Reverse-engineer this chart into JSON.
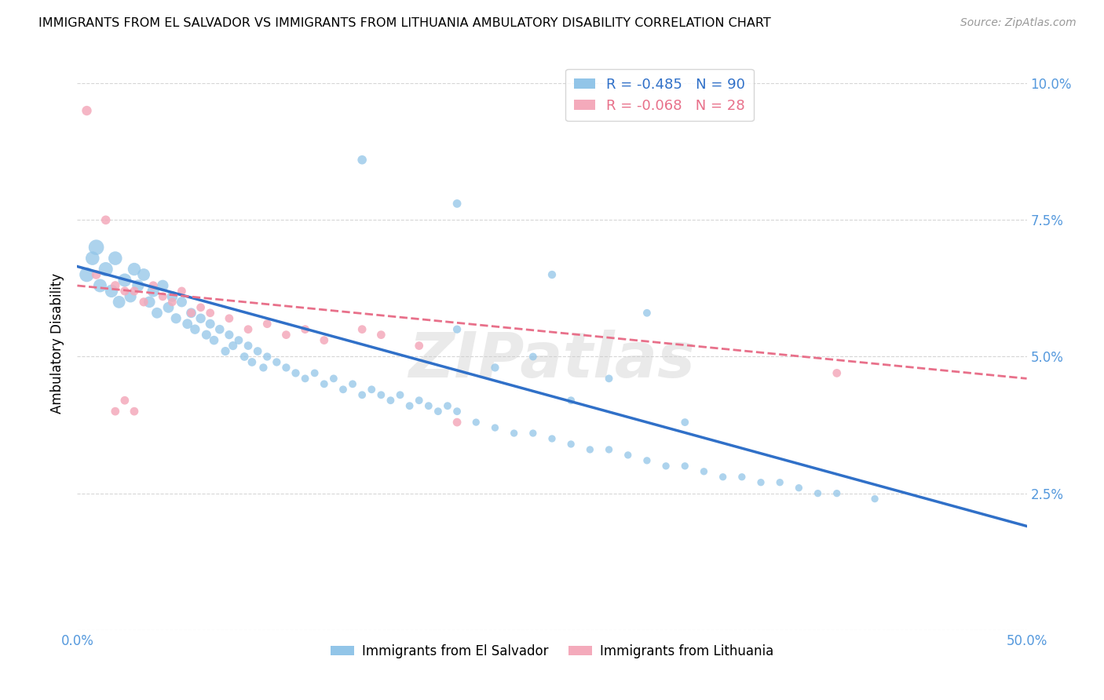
{
  "title": "IMMIGRANTS FROM EL SALVADOR VS IMMIGRANTS FROM LITHUANIA AMBULATORY DISABILITY CORRELATION CHART",
  "source": "Source: ZipAtlas.com",
  "ylabel": "Ambulatory Disability",
  "xlim": [
    0.0,
    0.5
  ],
  "ylim": [
    0.0,
    0.105
  ],
  "el_salvador_R": -0.485,
  "el_salvador_N": 90,
  "lithuania_R": -0.068,
  "lithuania_N": 28,
  "legend_labels": [
    "Immigrants from El Salvador",
    "Immigrants from Lithuania"
  ],
  "blue_color": "#92C5E8",
  "pink_color": "#F4AABB",
  "blue_line_color": "#3070C8",
  "pink_line_color": "#E8708A",
  "watermark": "ZIPatlas",
  "el_salvador_x": [
    0.005,
    0.008,
    0.01,
    0.012,
    0.015,
    0.018,
    0.02,
    0.022,
    0.025,
    0.028,
    0.03,
    0.032,
    0.035,
    0.038,
    0.04,
    0.042,
    0.045,
    0.048,
    0.05,
    0.052,
    0.055,
    0.058,
    0.06,
    0.062,
    0.065,
    0.068,
    0.07,
    0.072,
    0.075,
    0.078,
    0.08,
    0.082,
    0.085,
    0.088,
    0.09,
    0.092,
    0.095,
    0.098,
    0.1,
    0.105,
    0.11,
    0.115,
    0.12,
    0.125,
    0.13,
    0.135,
    0.14,
    0.145,
    0.15,
    0.155,
    0.16,
    0.165,
    0.17,
    0.175,
    0.18,
    0.185,
    0.19,
    0.195,
    0.2,
    0.21,
    0.22,
    0.23,
    0.24,
    0.25,
    0.26,
    0.27,
    0.28,
    0.29,
    0.3,
    0.31,
    0.32,
    0.33,
    0.34,
    0.35,
    0.36,
    0.37,
    0.38,
    0.39,
    0.4,
    0.42,
    0.15,
    0.2,
    0.25,
    0.3,
    0.2,
    0.24,
    0.28,
    0.22,
    0.26,
    0.32
  ],
  "el_salvador_y": [
    0.065,
    0.068,
    0.07,
    0.063,
    0.066,
    0.062,
    0.068,
    0.06,
    0.064,
    0.061,
    0.066,
    0.063,
    0.065,
    0.06,
    0.062,
    0.058,
    0.063,
    0.059,
    0.061,
    0.057,
    0.06,
    0.056,
    0.058,
    0.055,
    0.057,
    0.054,
    0.056,
    0.053,
    0.055,
    0.051,
    0.054,
    0.052,
    0.053,
    0.05,
    0.052,
    0.049,
    0.051,
    0.048,
    0.05,
    0.049,
    0.048,
    0.047,
    0.046,
    0.047,
    0.045,
    0.046,
    0.044,
    0.045,
    0.043,
    0.044,
    0.043,
    0.042,
    0.043,
    0.041,
    0.042,
    0.041,
    0.04,
    0.041,
    0.04,
    0.038,
    0.037,
    0.036,
    0.036,
    0.035,
    0.034,
    0.033,
    0.033,
    0.032,
    0.031,
    0.03,
    0.03,
    0.029,
    0.028,
    0.028,
    0.027,
    0.027,
    0.026,
    0.025,
    0.025,
    0.024,
    0.086,
    0.078,
    0.065,
    0.058,
    0.055,
    0.05,
    0.046,
    0.048,
    0.042,
    0.038
  ],
  "el_salvador_sizes": [
    180,
    160,
    200,
    150,
    170,
    140,
    160,
    130,
    150,
    120,
    140,
    120,
    130,
    110,
    120,
    100,
    110,
    100,
    100,
    90,
    90,
    85,
    85,
    80,
    80,
    75,
    75,
    70,
    70,
    65,
    65,
    65,
    60,
    60,
    60,
    60,
    60,
    55,
    55,
    55,
    55,
    55,
    50,
    50,
    50,
    50,
    50,
    50,
    50,
    50,
    50,
    50,
    50,
    50,
    50,
    50,
    50,
    50,
    50,
    45,
    45,
    45,
    45,
    45,
    45,
    45,
    45,
    45,
    45,
    45,
    45,
    45,
    45,
    45,
    45,
    45,
    45,
    45,
    45,
    45,
    70,
    60,
    55,
    50,
    55,
    50,
    50,
    55,
    50,
    50
  ],
  "lithuania_x": [
    0.005,
    0.01,
    0.015,
    0.02,
    0.025,
    0.03,
    0.035,
    0.04,
    0.045,
    0.05,
    0.055,
    0.06,
    0.065,
    0.07,
    0.08,
    0.09,
    0.1,
    0.11,
    0.12,
    0.13,
    0.15,
    0.16,
    0.18,
    0.2,
    0.02,
    0.025,
    0.03,
    0.4
  ],
  "lithuania_y": [
    0.095,
    0.065,
    0.075,
    0.063,
    0.062,
    0.062,
    0.06,
    0.063,
    0.061,
    0.06,
    0.062,
    0.058,
    0.059,
    0.058,
    0.057,
    0.055,
    0.056,
    0.054,
    0.055,
    0.053,
    0.055,
    0.054,
    0.052,
    0.038,
    0.04,
    0.042,
    0.04,
    0.047
  ],
  "lithuania_sizes": [
    80,
    70,
    70,
    70,
    65,
    65,
    65,
    65,
    60,
    60,
    60,
    60,
    60,
    60,
    60,
    60,
    60,
    60,
    60,
    60,
    60,
    60,
    60,
    60,
    60,
    60,
    60,
    60
  ],
  "es_line_x0": 0.0,
  "es_line_y0": 0.0665,
  "es_line_x1": 0.5,
  "es_line_y1": 0.019,
  "lt_line_x0": 0.0,
  "lt_line_y0": 0.063,
  "lt_line_x1": 0.5,
  "lt_line_y1": 0.046
}
